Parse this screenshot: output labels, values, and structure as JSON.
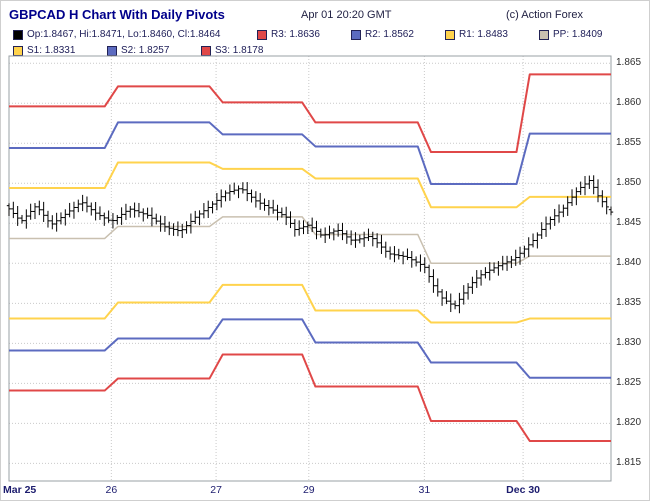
{
  "header": {
    "title": "GBPCAD H Chart With Daily Pivots",
    "timestamp": "Apr 01 20:20 GMT",
    "copyright": "(c) Action Forex"
  },
  "colors": {
    "red": "#e04848",
    "blue": "#5c6bc0",
    "yellow": "#ffd34d",
    "pp_gray": "#c9c0b0",
    "candle": "#000000",
    "grid": "#c9c9c9",
    "border": "#9aa0a6",
    "title_text": "#00008b",
    "text": "#21215a",
    "axis_text": "#303030"
  },
  "legend": {
    "rows": [
      [
        {
          "name": "ohlc",
          "label": "Op:1.8467, Hi:1.8471, Lo:1.8460, Cl:1.8464",
          "color": "#000000"
        },
        {
          "name": "r3",
          "label": "R3: 1.8636",
          "color": "#e04848"
        },
        {
          "name": "r2",
          "label": "R2: 1.8562",
          "color": "#5c6bc0"
        },
        {
          "name": "r1",
          "label": "R1: 1.8483",
          "color": "#ffd34d"
        },
        {
          "name": "pp",
          "label": "PP: 1.8409",
          "color": "#c9c0b0"
        }
      ],
      [
        {
          "name": "s1",
          "label": "S1: 1.8331",
          "color": "#ffd34d"
        },
        {
          "name": "s2",
          "label": "S2: 1.8257",
          "color": "#5c6bc0"
        },
        {
          "name": "s3",
          "label": "S3: 1.8178",
          "color": "#e04848"
        }
      ]
    ]
  },
  "chart_data": {
    "type": "candlestick",
    "title": "GBPCAD H Chart With Daily Pivots",
    "instrument": "GBPCAD",
    "interval": "H",
    "overlay": "Daily Pivots (R3,R2,R1,PP,S1,S2,S3) stepped per day",
    "ylim": [
      1.8128,
      1.8659
    ],
    "y_ticks": [
      "1.865",
      "1.860",
      "1.855",
      "1.850",
      "1.845",
      "1.840",
      "1.835",
      "1.830",
      "1.825",
      "1.820",
      "1.815"
    ],
    "x_labels": [
      {
        "label": "Mar 25",
        "t": 0.0,
        "bold": true,
        "align": "left"
      },
      {
        "label": "26",
        "t": 0.17,
        "bold": false,
        "align": "center"
      },
      {
        "label": "27",
        "t": 0.344,
        "bold": false,
        "align": "center"
      },
      {
        "label": "29",
        "t": 0.498,
        "bold": false,
        "align": "center"
      },
      {
        "label": "31",
        "t": 0.69,
        "bold": false,
        "align": "center"
      },
      {
        "label": "Dec 30",
        "t": 0.854,
        "bold": true,
        "align": "center"
      }
    ],
    "day_boundaries": [
      0.17,
      0.344,
      0.498,
      0.69,
      0.854
    ],
    "pivot_lines": [
      {
        "name": "R3",
        "color": "#e04848",
        "width": 2,
        "values": [
          1.8596,
          1.8621,
          1.8601,
          1.8576,
          1.8539,
          1.8636
        ]
      },
      {
        "name": "R2",
        "color": "#5c6bc0",
        "width": 2,
        "values": [
          1.8544,
          1.8576,
          1.8561,
          1.8546,
          1.8499,
          1.8562
        ]
      },
      {
        "name": "R1",
        "color": "#ffd34d",
        "width": 2,
        "values": [
          1.8494,
          1.8526,
          1.8518,
          1.8506,
          1.847,
          1.8483
        ]
      },
      {
        "name": "PP",
        "color": "#c9c0b0",
        "width": 1.5,
        "values": [
          1.8431,
          1.8446,
          1.8458,
          1.8436,
          1.84,
          1.8409
        ]
      },
      {
        "name": "S1",
        "color": "#ffd34d",
        "width": 2,
        "values": [
          1.8331,
          1.8351,
          1.8373,
          1.8341,
          1.8326,
          1.8331
        ]
      },
      {
        "name": "S2",
        "color": "#5c6bc0",
        "width": 2,
        "values": [
          1.8291,
          1.8306,
          1.833,
          1.8301,
          1.8276,
          1.8257
        ]
      },
      {
        "name": "S3",
        "color": "#e04848",
        "width": 2,
        "values": [
          1.8241,
          1.8256,
          1.8286,
          1.8246,
          1.8203,
          1.8178
        ]
      }
    ],
    "last_bar": {
      "open": 1.8467,
      "high": 1.8471,
      "low": 1.846,
      "close": 1.8464
    },
    "bar_count": 140,
    "price_path": [
      [
        0.0,
        1.8468
      ],
      [
        0.02,
        1.8452
      ],
      [
        0.045,
        1.8472
      ],
      [
        0.07,
        1.8448
      ],
      [
        0.095,
        1.8462
      ],
      [
        0.12,
        1.8477
      ],
      [
        0.145,
        1.8462
      ],
      [
        0.17,
        1.8452
      ],
      [
        0.2,
        1.8468
      ],
      [
        0.23,
        1.846
      ],
      [
        0.26,
        1.8445
      ],
      [
        0.285,
        1.844
      ],
      [
        0.31,
        1.8458
      ],
      [
        0.335,
        1.8472
      ],
      [
        0.36,
        1.8488
      ],
      [
        0.385,
        1.8494
      ],
      [
        0.41,
        1.8478
      ],
      [
        0.435,
        1.8468
      ],
      [
        0.46,
        1.8458
      ],
      [
        0.475,
        1.8442
      ],
      [
        0.498,
        1.8448
      ],
      [
        0.52,
        1.8434
      ],
      [
        0.545,
        1.8442
      ],
      [
        0.57,
        1.8428
      ],
      [
        0.6,
        1.8434
      ],
      [
        0.63,
        1.8412
      ],
      [
        0.66,
        1.8408
      ],
      [
        0.69,
        1.8396
      ],
      [
        0.705,
        1.8372
      ],
      [
        0.72,
        1.8356
      ],
      [
        0.74,
        1.8346
      ],
      [
        0.76,
        1.8368
      ],
      [
        0.78,
        1.8384
      ],
      [
        0.81,
        1.8396
      ],
      [
        0.84,
        1.8406
      ],
      [
        0.87,
        1.8428
      ],
      [
        0.895,
        1.8452
      ],
      [
        0.92,
        1.8468
      ],
      [
        0.945,
        1.8492
      ],
      [
        0.965,
        1.8504
      ],
      [
        0.98,
        1.8482
      ],
      [
        1.0,
        1.8464
      ]
    ]
  }
}
